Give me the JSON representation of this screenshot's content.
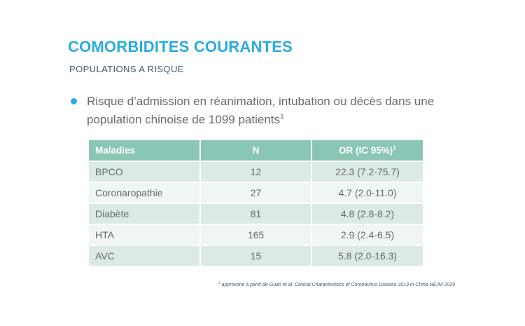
{
  "slide": {
    "title": "COMORBIDITES COURANTES",
    "subtitle": "POPULATIONS A RISQUE",
    "bullet": {
      "text": "Risque d’admission en réanimation, intubation ou décès dans une population chinoise de 1099 patients",
      "sup": "1"
    },
    "table": {
      "headers": [
        {
          "label": "Maladies",
          "sup": ""
        },
        {
          "label": "N",
          "sup": ""
        },
        {
          "label": "OR (IC 95%)",
          "sup": "1"
        }
      ],
      "rows": [
        [
          "BPCO",
          "12",
          "22.3 (7.2-75.7)"
        ],
        [
          "Coronaropathie",
          "27",
          "4.7 (2.0-11.0)"
        ],
        [
          "Diabète",
          "81",
          "4.8 (2.8-8.2)"
        ],
        [
          "HTA",
          "165",
          "2.9 (2.4-6.5)"
        ],
        [
          "AVC",
          "15",
          "5.8 (2.0-16.3)"
        ]
      ]
    },
    "footnote": {
      "sup": "1",
      "text": " approximé à partir de Guan et al. Clinical Characteristics of Coronavirus Disease 2019 in China NEJM 2020"
    },
    "colors": {
      "accent_blue": "#29ABE2",
      "table_header_bg": "#8AC6B6",
      "table_row_odd_bg": "#DCEAE6",
      "table_row_even_bg": "#F0F6F3",
      "subtitle_text": "#40586A",
      "body_text": "#6A6A6A",
      "table_text": "#636B69",
      "footnote_text": "#44546A"
    }
  }
}
